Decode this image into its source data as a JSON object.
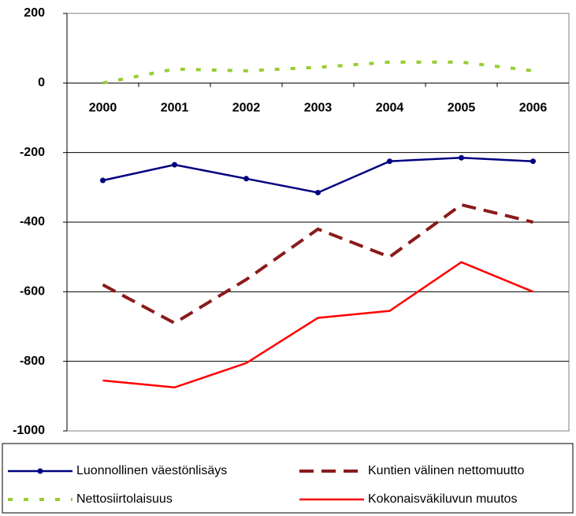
{
  "chart_data": {
    "type": "line",
    "categories": [
      "2000",
      "2001",
      "2002",
      "2003",
      "2004",
      "2005",
      "2006"
    ],
    "series": [
      {
        "name": "Luonnollinen väestönlisäys",
        "color": "#000080",
        "style": "solid-markers",
        "values": [
          -280,
          -235,
          -275,
          -315,
          -225,
          -215,
          -225
        ]
      },
      {
        "name": "Kuntien välinen nettomuutto",
        "color": "#8b1a1a",
        "style": "dashed",
        "values": [
          -580,
          -690,
          -565,
          -420,
          -500,
          -350,
          -400
        ]
      },
      {
        "name": "Nettosiirtolaisuus",
        "color": "#99cc33",
        "style": "dotted",
        "values": [
          0,
          40,
          35,
          45,
          60,
          60,
          35
        ]
      },
      {
        "name": "Kokonaisväkiluvun muutos",
        "color": "#ff0000",
        "style": "solid",
        "values": [
          -855,
          -875,
          -805,
          -675,
          -655,
          -515,
          -600
        ]
      }
    ],
    "ylim": [
      -1000,
      200
    ],
    "yticks": [
      -1000,
      -800,
      -600,
      -400,
      -200,
      0,
      200
    ],
    "grid": true,
    "legend": "bottom"
  }
}
